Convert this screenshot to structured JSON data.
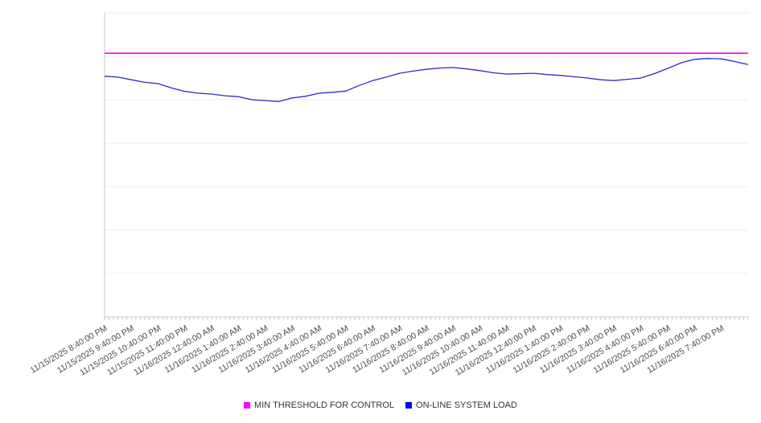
{
  "chart_data": {
    "type": "line",
    "title": "",
    "xlabel": "",
    "ylabel": "",
    "ylim": [
      0,
      7
    ],
    "grid": "horizontal",
    "legend_position": "bottom",
    "y_tick_labels_visible": false,
    "categories": [
      "11/15/2025 8:40:00 PM",
      "11/15/2025 9:40:00 PM",
      "11/15/2025 10:40:00 PM",
      "11/15/2025 11:40:00 PM",
      "11/16/2025 12:40:00 AM",
      "11/16/2025 1:40:00 AM",
      "11/16/2025 2:40:00 AM",
      "11/16/2025 3:40:00 AM",
      "11/16/2025 4:40:00 AM",
      "11/16/2025 5:40:00 AM",
      "11/16/2025 6:40:00 AM",
      "11/16/2025 7:40:00 AM",
      "11/16/2025 8:40:00 AM",
      "11/16/2025 9:40:00 AM",
      "11/16/2025 10:40:00 AM",
      "11/16/2025 11:40:00 AM",
      "11/16/2025 12:40:00 PM",
      "11/16/2025 1:40:00 PM",
      "11/16/2025 2:40:00 PM",
      "11/16/2025 3:40:00 PM",
      "11/16/2025 4:40:00 PM",
      "11/16/2025 5:40:00 PM",
      "11/16/2025 6:40:00 PM",
      "11/16/2025 7:40:00 PM"
    ],
    "series": [
      {
        "name": "MIN THRESHOLD FOR CONTROL",
        "type": "constant-line",
        "color": "#ff00ff",
        "constant_value": 6.07
      },
      {
        "name": "ON-LINE SYSTEM LOAD",
        "type": "line",
        "color": "#2b2bc8",
        "x_step_hours": 0.5,
        "values": [
          5.54,
          5.52,
          5.46,
          5.4,
          5.37,
          5.27,
          5.19,
          5.15,
          5.13,
          5.09,
          5.07,
          5.0,
          4.98,
          4.96,
          5.04,
          5.08,
          5.15,
          5.17,
          5.2,
          5.33,
          5.44,
          5.52,
          5.61,
          5.66,
          5.7,
          5.73,
          5.74,
          5.71,
          5.67,
          5.62,
          5.59,
          5.6,
          5.61,
          5.58,
          5.56,
          5.53,
          5.5,
          5.46,
          5.44,
          5.47,
          5.5,
          5.6,
          5.72,
          5.85,
          5.93,
          5.95,
          5.94,
          5.88,
          5.81
        ]
      }
    ]
  },
  "legend": {
    "items": [
      {
        "label": "MIN THRESHOLD FOR CONTROL",
        "color": "#ff00ff"
      },
      {
        "label": "ON-LINE SYSTEM LOAD",
        "color": "#0000ff"
      }
    ]
  }
}
